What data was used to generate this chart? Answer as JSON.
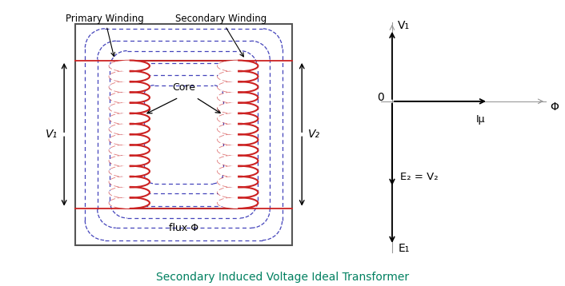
{
  "fig_width": 7.06,
  "fig_height": 3.58,
  "dpi": 100,
  "bg_color": "#ffffff",
  "title": "Secondary Induced Voltage Ideal Transformer",
  "title_color": "#008060",
  "title_fontsize": 10,
  "coil_color": "#cc2222",
  "flux_color": "#4444bb",
  "labels": {
    "primary_winding": "Primary Winding",
    "secondary_winding": "Secondary Winding",
    "core": "Core",
    "flux": "flux Φ",
    "v1_left": "V₁",
    "v2_right": "V₂"
  },
  "phasor": {
    "V1_label": "V₁",
    "E1_label": "E₁",
    "E2_label": "E₂ = V₂",
    "phi_label": "Φ",
    "Imu_label": "Iμ",
    "zero_label": "0",
    "axis_color": "#999999",
    "arrow_color": "#000000"
  }
}
